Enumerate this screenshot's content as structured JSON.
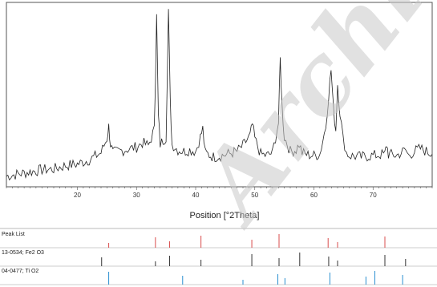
{
  "chart_data": {
    "type": "line",
    "xlabel": "Position [°2Theta]",
    "xlim": [
      8,
      80
    ],
    "xticks": [
      20,
      30,
      40,
      50,
      60,
      70
    ],
    "grid": false,
    "series": [
      {
        "x": [
          8,
          10,
          12,
          14,
          16,
          18,
          20,
          22,
          24,
          25,
          25.3,
          25.6,
          26,
          27,
          28,
          30,
          31,
          32,
          33,
          33.2,
          33.4,
          33.7,
          34,
          35,
          35.4,
          35.7,
          36,
          37,
          38,
          39,
          40,
          40.8,
          41.2,
          41.6,
          43,
          45,
          47,
          48,
          49.2,
          49.6,
          50,
          51,
          52,
          53,
          54,
          54.3,
          54.6,
          55,
          56,
          57,
          57.5,
          58,
          59,
          60,
          61,
          62,
          62.5,
          62.9,
          63.3,
          63.7,
          64,
          64.4,
          64.9,
          65.5,
          66,
          68,
          70,
          72,
          72.3,
          72.6,
          74,
          75.5,
          76,
          77,
          78,
          80
        ],
        "y": [
          95,
          98,
          101,
          104,
          105,
          110,
          112,
          118,
          128,
          148,
          165,
          140,
          128,
          130,
          132,
          136,
          142,
          138,
          160,
          235,
          320,
          180,
          140,
          150,
          330,
          200,
          140,
          132,
          130,
          132,
          130,
          150,
          162,
          128,
          122,
          125,
          130,
          138,
          152,
          168,
          148,
          126,
          124,
          128,
          170,
          260,
          195,
          150,
          130,
          132,
          140,
          128,
          125,
          124,
          126,
          165,
          210,
          245,
          190,
          160,
          225,
          185,
          150,
          128,
          124,
          122,
          124,
          126,
          140,
          126,
          124,
          132,
          124,
          130,
          134,
          126
        ]
      }
    ],
    "peak_list": [
      25.3,
      33.2,
      35.6,
      40.9,
      49.5,
      54.1,
      62.4,
      64.0,
      72.0
    ],
    "reference_rows": [
      {
        "label": "Peak List",
        "peaks": [
          25.3,
          33.2,
          35.6,
          40.9,
          49.5,
          54.1,
          62.4,
          64.0,
          72.0
        ]
      },
      {
        "label": "13-0534; Fe2 O3",
        "peaks": [
          24.1,
          33.2,
          35.6,
          40.9,
          49.5,
          54.1,
          57.6,
          62.5,
          64.0,
          72.0,
          75.5
        ]
      },
      {
        "label": "04-0477; Ti O2",
        "peaks": [
          25.3,
          37.8,
          48.0,
          53.9,
          55.1,
          62.7,
          68.8,
          70.3,
          75.0
        ]
      }
    ],
    "watermark": "Archive"
  },
  "colors": {
    "main_line": "#222222",
    "peak_list": "#d94c4c",
    "fe2o3": "#333333",
    "tio2": "#2a8fd0",
    "tio2_label": "#2a8fd0"
  }
}
